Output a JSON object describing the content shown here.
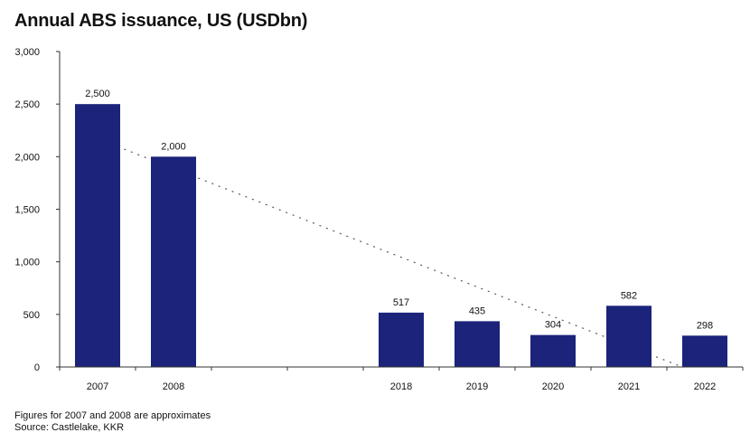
{
  "title": "Annual ABS issuance, US (USDbn)",
  "footnote": "Figures for 2007 and 2008 are approximates",
  "source": "Source: Castlelake, KKR",
  "colors": {
    "bar": "#1b237a",
    "axis": "#333333",
    "trend": "#555555",
    "text": "#111111"
  },
  "chart_data": {
    "type": "bar",
    "title": "Annual ABS issuance, US (USDbn)",
    "categories": [
      "2007",
      "2008",
      "",
      "",
      "2018",
      "2019",
      "2020",
      "2021",
      "2022"
    ],
    "values": [
      2500,
      2000,
      null,
      null,
      517,
      435,
      304,
      582,
      298
    ],
    "data_labels": [
      "2,500",
      "2,000",
      "",
      "",
      "517",
      "435",
      "304",
      "582",
      "298"
    ],
    "ylim": [
      0,
      3000
    ],
    "yticks": [
      0,
      500,
      1000,
      1500,
      2000,
      2500,
      3000
    ],
    "ytick_labels": [
      "0",
      "500",
      "1,000",
      "1,500",
      "2,000",
      "2,500",
      "3,000"
    ],
    "xlabel": "",
    "ylabel": "",
    "grid": false,
    "trendline": {
      "style": "dotted",
      "from_category": "2007",
      "to_category": "2022",
      "from_value": 2170,
      "to_value": 0
    }
  }
}
